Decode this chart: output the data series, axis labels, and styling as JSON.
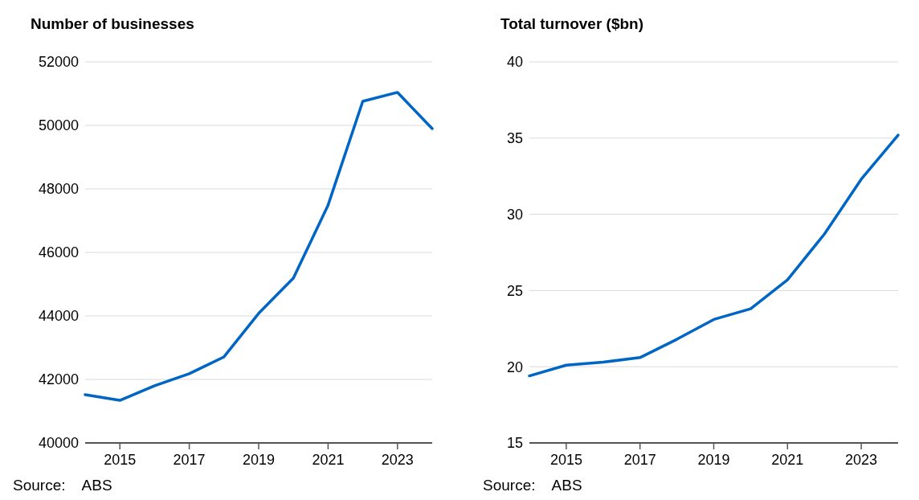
{
  "chart_data": [
    {
      "type": "line",
      "title": "Number of businesses",
      "x": [
        2014,
        2015,
        2016,
        2017,
        2018,
        2019,
        2020,
        2021,
        2022,
        2023,
        2024
      ],
      "xlim": [
        2014,
        2024
      ],
      "xticks": [
        2015,
        2017,
        2019,
        2021,
        2023
      ],
      "ylim": [
        40000,
        52000
      ],
      "yticks": [
        40000,
        42000,
        44000,
        46000,
        48000,
        50000,
        52000
      ],
      "grid": "y",
      "marker": "none",
      "annotations": [
        "Source:    ABS"
      ],
      "series": [
        {
          "color": "#0066c6",
          "values": [
            41520,
            41340,
            41800,
            42180,
            42710,
            44080,
            45190,
            47490,
            50760,
            51040,
            49900
          ]
        }
      ]
    },
    {
      "type": "line",
      "title": "Total turnover ($bn)",
      "x": [
        2014,
        2015,
        2016,
        2017,
        2018,
        2019,
        2020,
        2021,
        2022,
        2023,
        2024
      ],
      "xlim": [
        2014,
        2024
      ],
      "xticks": [
        2015,
        2017,
        2019,
        2021,
        2023
      ],
      "ylim": [
        15,
        40
      ],
      "yticks": [
        15,
        20,
        25,
        30,
        35,
        40
      ],
      "grid": "y",
      "marker": "none",
      "annotations": [
        "Source:    ABS"
      ],
      "series": [
        {
          "color": "#0066c6",
          "values": [
            19.4,
            20.1,
            20.3,
            20.6,
            21.8,
            23.1,
            23.8,
            25.7,
            28.7,
            32.3,
            35.2
          ]
        }
      ]
    }
  ]
}
